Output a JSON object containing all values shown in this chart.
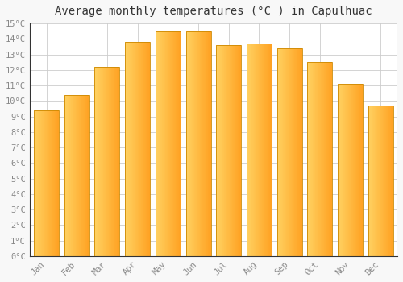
{
  "title": "Average monthly temperatures (°C ) in Capulhuac",
  "months": [
    "Jan",
    "Feb",
    "Mar",
    "Apr",
    "May",
    "Jun",
    "Jul",
    "Aug",
    "Sep",
    "Oct",
    "Nov",
    "Dec"
  ],
  "values": [
    9.4,
    10.4,
    12.2,
    13.8,
    14.5,
    14.5,
    13.6,
    13.7,
    13.4,
    12.5,
    11.1,
    9.7
  ],
  "bar_color_left": "#FFD060",
  "bar_color_right": "#FFA020",
  "bar_edge_color": "#CC8800",
  "ylim": [
    0,
    15
  ],
  "ytick_step": 1,
  "background_color": "#F8F8F8",
  "plot_bg_color": "#FFFFFF",
  "grid_color": "#CCCCCC",
  "title_fontsize": 10,
  "tick_fontsize": 7.5,
  "font_family": "monospace",
  "tick_color": "#888888",
  "spine_color": "#333333"
}
